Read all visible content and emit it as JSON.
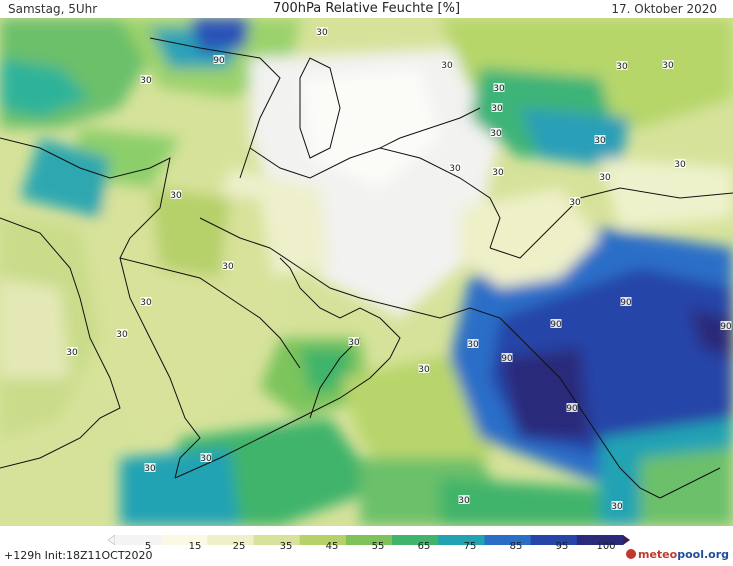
{
  "header": {
    "left": "Samstag, 5Uhr",
    "title": "700hPa Relative Feuchte [%]",
    "right": "17. Oktober 2020"
  },
  "footer": {
    "run": "+129h Init:18Z11OCT2020",
    "brand_main": "meteo",
    "brand_rest": "pool.org"
  },
  "colorbar": {
    "ticks": [
      "5",
      "15",
      "25",
      "35",
      "45",
      "55",
      "65",
      "75",
      "85",
      "95",
      "100"
    ],
    "colors": [
      "#f4f4f4",
      "#fbf8e4",
      "#eef0c8",
      "#d8e29a",
      "#b6d06a",
      "#7fc25a",
      "#3fb46a",
      "#22a3b4",
      "#2a6ec8",
      "#2545a8",
      "#2a2a7a",
      "#3b1d5a"
    ]
  },
  "contour_labels": [
    {
      "text": "30"
    },
    {
      "text": "90"
    },
    {
      "text": "30"
    },
    {
      "text": "30"
    },
    {
      "text": "30"
    },
    {
      "text": "30"
    },
    {
      "text": "30"
    },
    {
      "text": "30"
    },
    {
      "text": "30"
    },
    {
      "text": "30"
    },
    {
      "text": "30"
    },
    {
      "text": "30"
    },
    {
      "text": "30"
    },
    {
      "text": "30"
    },
    {
      "text": "30"
    },
    {
      "text": "30"
    },
    {
      "text": "30"
    },
    {
      "text": "30"
    },
    {
      "text": "30"
    },
    {
      "text": "90"
    },
    {
      "text": "90"
    },
    {
      "text": "90"
    },
    {
      "text": "90"
    },
    {
      "text": "90"
    },
    {
      "text": "30"
    },
    {
      "text": "30"
    },
    {
      "text": "30"
    },
    {
      "text": "30"
    },
    {
      "text": "30"
    },
    {
      "text": "30"
    },
    {
      "text": "30"
    },
    {
      "text": "30"
    }
  ]
}
